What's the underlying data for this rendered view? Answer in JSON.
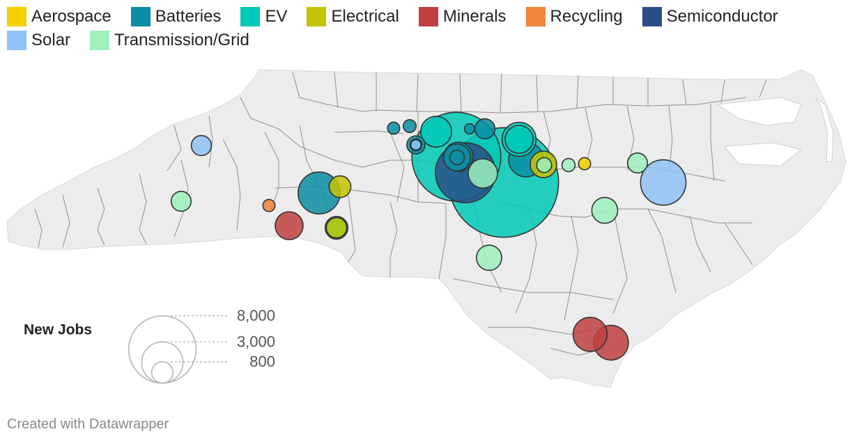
{
  "legend": [
    {
      "label": "Aerospace",
      "color": "#f5d000"
    },
    {
      "label": "Batteries",
      "color": "#0b8da3"
    },
    {
      "label": "EV",
      "color": "#00c9b7"
    },
    {
      "label": "Electrical",
      "color": "#c5c400"
    },
    {
      "label": "Minerals",
      "color": "#c0413f"
    },
    {
      "label": "Recycling",
      "color": "#f0843a"
    },
    {
      "label": "Semiconductor",
      "color": "#2a4f87"
    },
    {
      "label": "Solar",
      "color": "#8fc2f5"
    },
    {
      "label": "Transmission/Grid",
      "color": "#9ef0bd"
    }
  ],
  "size_legend": {
    "title": "New Jobs",
    "values": [
      {
        "value": 8000,
        "label": "8,000"
      },
      {
        "value": 3000,
        "label": "3,000"
      },
      {
        "value": 800,
        "label": "800"
      }
    ]
  },
  "map": {
    "region": "North Carolina counties",
    "land_color": "#ececec",
    "border_color": "#8f8f8f",
    "bubble_outline": "#333333",
    "bubbles": [
      {
        "category": "Aerospace",
        "jobs": 170
      },
      {
        "category": "Batteries",
        "jobs": 170
      },
      {
        "category": "Batteries",
        "jobs": 190
      },
      {
        "category": "Batteries",
        "jobs": 470
      },
      {
        "category": "Batteries",
        "jobs": 120
      },
      {
        "category": "Batteries",
        "jobs": 1400
      },
      {
        "category": "Batteries",
        "jobs": 1000
      },
      {
        "category": "Batteries",
        "jobs": 850
      },
      {
        "category": "Batteries",
        "jobs": 380
      },
      {
        "category": "Batteries",
        "jobs": 250
      },
      {
        "category": "Batteries",
        "jobs": 2050
      },
      {
        "category": "EV",
        "jobs": 1100
      },
      {
        "category": "EV",
        "jobs": 9200
      },
      {
        "category": "EV",
        "jobs": 1350
      },
      {
        "category": "EV",
        "jobs": 900
      },
      {
        "category": "EV",
        "jobs": 14000
      },
      {
        "category": "EV",
        "jobs": 600
      },
      {
        "category": "EV",
        "jobs": 160
      },
      {
        "category": "Electrical",
        "jobs": 550
      },
      {
        "category": "Electrical",
        "jobs": 480
      },
      {
        "category": "Electrical",
        "jobs": 820
      },
      {
        "category": "Minerals",
        "jobs": 900
      },
      {
        "category": "Minerals",
        "jobs": 1350
      },
      {
        "category": "Minerals",
        "jobs": 1400
      },
      {
        "category": "Recycling",
        "jobs": 170
      },
      {
        "category": "Semiconductor",
        "jobs": 4200
      },
      {
        "category": "Solar",
        "jobs": 470
      },
      {
        "category": "Solar",
        "jobs": 2400
      },
      {
        "category": "Solar",
        "jobs": 120
      },
      {
        "category": "Transmission/Grid",
        "jobs": 460
      },
      {
        "category": "Transmission/Grid",
        "jobs": 1000
      },
      {
        "category": "Transmission/Grid",
        "jobs": 740
      },
      {
        "category": "Transmission/Grid",
        "jobs": 780
      },
      {
        "category": "Transmission/Grid",
        "jobs": 200
      },
      {
        "category": "Transmission/Grid",
        "jobs": 460
      },
      {
        "category": "Transmission/Grid",
        "jobs": 260
      }
    ]
  },
  "footer": "Created with Datawrapper"
}
